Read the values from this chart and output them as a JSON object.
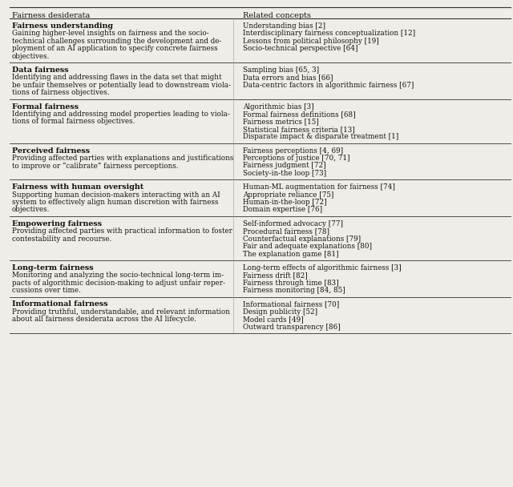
{
  "col1_header": "Fairness desiderata",
  "col2_header": "Related concepts",
  "bg_color": "#f0ede8",
  "text_color": "#111111",
  "rows": [
    {
      "title": "Fairness understanding",
      "description": "Gaining higher-level insights on fairness and the socio-\ntechnical challenges surrounding the development and de-\nployment of an AI application to specify concrete fairness\nobjectives.",
      "concepts": [
        "Understanding bias [2]",
        "Interdisciplinary fairness conceptualization [12]",
        "Lessons from political philosophy [19]",
        "Socio-technical perspective [64]"
      ]
    },
    {
      "title": "Data fairness",
      "description": "Identifying and addressing flaws in the data set that might\nbe unfair themselves or potentially lead to downstream viola-\ntions of fairness objectives.",
      "concepts": [
        "Sampling bias [65, 3]",
        "Data errors and bias [66]",
        "Data-centric factors in algorithmic fairness [67]"
      ]
    },
    {
      "title": "Formal fairness",
      "description": "Identifying and addressing model properties leading to viola-\ntions of formal fairness objectives.",
      "concepts": [
        "Algorithmic bias [3]",
        "Formal fairness definitions [68]",
        "Fairness metrics [15]",
        "Statistical fairness criteria [13]",
        "Disparate impact & disparate treatment [1]"
      ]
    },
    {
      "title": "Perceived fairness",
      "description": "Providing affected parties with explanations and justifications\nto improve or “calibrate” fairness perceptions.",
      "concepts": [
        "Fairness perceptions [4, 69]",
        "Perceptions of justice [70, 71]",
        "Fairness judgment [72]",
        "Society-in-the loop [73]"
      ]
    },
    {
      "title": "Fairness with human oversight",
      "description": "Supporting human decision-makers interacting with an AI\nsystem to effectively align human discretion with fairness\nobjectives.",
      "concepts": [
        "Human-ML augmentation for fairness [74]",
        "Appropriate reliance [75]",
        "Human-in-the-loop [72]",
        "Domain expertise [76]"
      ]
    },
    {
      "title": "Empowering fairness",
      "description": "Providing affected parties with practical information to foster\ncontestability and recourse.",
      "concepts": [
        "Self-informed advocacy [77]",
        "Procedural fairness [78]",
        "Counterfactual explanations [79]",
        "Fair and adequate explanations [80]",
        "The explanation game [81]"
      ]
    },
    {
      "title": "Long-term fairness",
      "description": "Monitoring and analyzing the socio-technical long-term im-\npacts of algorithmic decision-making to adjust unfair reper-\ncussions over time.",
      "concepts": [
        "Long-term effects of algorithmic fairness [3]",
        "Fairness drift [82]",
        "Fairness through time [83]",
        "Fairness monitoring [84, 85]"
      ]
    },
    {
      "title": "Informational fairness",
      "description": "Providing truthful, understandable, and relevant information\nabout all fairness desiderata across the AI lifecycle.",
      "concepts": [
        "Informational fairness [70]",
        "Design publicity [52]",
        "Model cards [49]",
        "Outward transparency [86]"
      ]
    }
  ]
}
